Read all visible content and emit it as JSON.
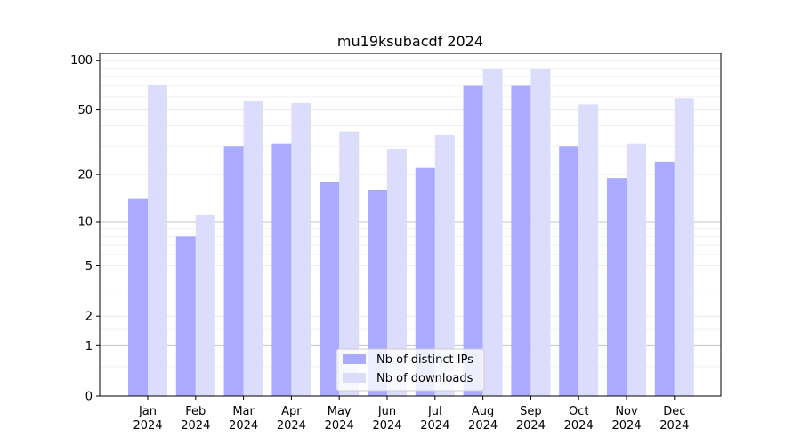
{
  "chart_data": {
    "type": "bar",
    "title": "mu19ksubacdf 2024",
    "xlabel": "",
    "ylabel": "",
    "y_scale": "symlog",
    "ylim": [
      0,
      110
    ],
    "yticks": [
      0,
      1,
      2,
      5,
      10,
      20,
      50,
      100
    ],
    "categories": [
      [
        "Jan",
        "2024"
      ],
      [
        "Feb",
        "2024"
      ],
      [
        "Mar",
        "2024"
      ],
      [
        "Apr",
        "2024"
      ],
      [
        "May",
        "2024"
      ],
      [
        "Jun",
        "2024"
      ],
      [
        "Jul",
        "2024"
      ],
      [
        "Aug",
        "2024"
      ],
      [
        "Sep",
        "2024"
      ],
      [
        "Oct",
        "2024"
      ],
      [
        "Nov",
        "2024"
      ],
      [
        "Dec",
        "2024"
      ]
    ],
    "series": [
      {
        "name": "Nb of distinct IPs",
        "color": "#aaaaff",
        "values": [
          14,
          8,
          30,
          31,
          18,
          16,
          22,
          70,
          70,
          30,
          19,
          24
        ]
      },
      {
        "name": "Nb of downloads",
        "color": "#dcdcfc",
        "values": [
          71,
          11,
          57,
          55,
          37,
          29,
          35,
          88,
          89,
          54,
          31,
          59
        ]
      }
    ],
    "grid": true,
    "legend_position": "lower-center"
  }
}
